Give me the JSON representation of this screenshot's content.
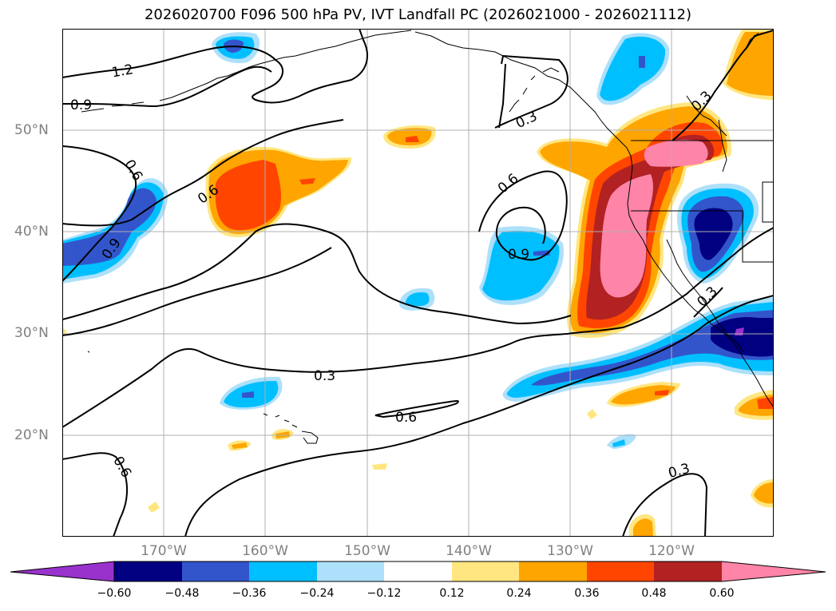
{
  "title": "2026020700 F096 500 hPa PV, IVT Landfall PC (2026021000 - 2026021112)",
  "lat_labels": [
    "50°N",
    "40°N",
    "30°N",
    "20°N"
  ],
  "lon_labels": [
    "170°W",
    "160°W",
    "150°W",
    "140°W",
    "130°W",
    "120°W"
  ],
  "contour_labels": [
    "1.2",
    "0.9",
    "0.6",
    "0.6",
    "0.9",
    "0.3",
    "0.6",
    "0.9",
    "0.3",
    "0.3",
    "0.6",
    "0.6",
    "0.3",
    "0.3"
  ],
  "colorbar": {
    "ticks": [
      "−0.60",
      "−0.48",
      "−0.36",
      "−0.24",
      "−0.12",
      "0.12",
      "0.24",
      "0.36",
      "0.48",
      "0.60"
    ],
    "colors": [
      "#9932CC",
      "#000080",
      "#3355CC",
      "#00BFFF",
      "#ADE0FA",
      "#FFFFFF",
      "#FFE680",
      "#FFA500",
      "#FF4500",
      "#B22222",
      "#FF85A8"
    ]
  },
  "colors": {
    "grid": "#b0b0b0",
    "coast": "#000000",
    "contour": "#000000",
    "axis_label": "#808080"
  }
}
